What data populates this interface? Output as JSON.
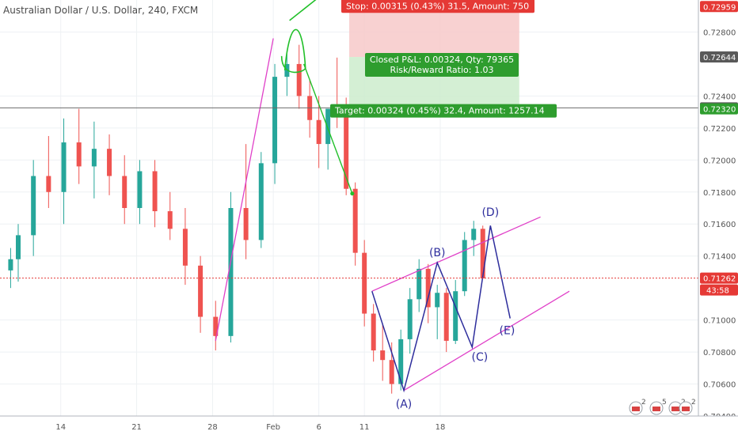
{
  "chart_data": {
    "type": "candlestick",
    "title": "Australian Dollar / U.S. Dollar, 240, FXCM",
    "ylim": [
      0.704,
      0.73
    ],
    "xlim": [
      0,
      46
    ],
    "x_ticks": [
      {
        "label": "14",
        "x": 4
      },
      {
        "label": "21",
        "x": 9
      },
      {
        "label": "28",
        "x": 14
      },
      {
        "label": "Feb",
        "x": 18
      },
      {
        "label": "6",
        "x": 21
      },
      {
        "label": "11",
        "x": 24
      },
      {
        "label": "18",
        "x": 29
      }
    ],
    "y_ticks": [
      "0.72800",
      "0.72400",
      "0.72200",
      "0.72000",
      "0.71800",
      "0.71600",
      "0.71400",
      "0.71000",
      "0.70800",
      "0.70600",
      "0.70400"
    ],
    "y_tick_values": [
      0.728,
      0.724,
      0.722,
      0.72,
      0.718,
      0.716,
      0.714,
      0.71,
      0.708,
      0.706,
      0.704
    ],
    "price_tags": [
      {
        "label": "0.72959",
        "value": 0.72959,
        "color": "#e53935"
      },
      {
        "label": "0.72644",
        "value": 0.72644,
        "color": "#595959"
      },
      {
        "label": "0.72326",
        "value": 0.72326,
        "color": "#595959"
      },
      {
        "label": "0.72320",
        "value": 0.7232,
        "color": "#2e9d2e"
      },
      {
        "label": "0.71262",
        "value": 0.71262,
        "color": "#e53935"
      }
    ],
    "countdown": "43:58",
    "horizontal_lines": [
      {
        "value": 0.72326,
        "style": "solid",
        "color": "#6b6b6b"
      },
      {
        "value": 0.71262,
        "style": "dotted",
        "color": "#e53935"
      }
    ],
    "candles": [
      [
        0.7,
        0.7131,
        0.7145,
        0.712,
        0.7138
      ],
      [
        1.2,
        0.7138,
        0.716,
        0.7124,
        0.7153
      ],
      [
        2.2,
        0.7153,
        0.72,
        0.714,
        0.719
      ],
      [
        3.2,
        0.719,
        0.7215,
        0.717,
        0.718
      ],
      [
        4.2,
        0.718,
        0.7226,
        0.716,
        0.7211
      ],
      [
        5.2,
        0.7211,
        0.7232,
        0.7185,
        0.7196
      ],
      [
        6.2,
        0.7196,
        0.7224,
        0.7176,
        0.7207
      ],
      [
        7.2,
        0.7207,
        0.7216,
        0.7178,
        0.719
      ],
      [
        8.2,
        0.719,
        0.7203,
        0.716,
        0.717
      ],
      [
        9.2,
        0.717,
        0.72,
        0.716,
        0.7193
      ],
      [
        10.2,
        0.7193,
        0.72,
        0.7158,
        0.7168
      ],
      [
        11.2,
        0.7168,
        0.718,
        0.715,
        0.7157
      ],
      [
        12.2,
        0.7157,
        0.717,
        0.7122,
        0.7134
      ],
      [
        13.2,
        0.7134,
        0.714,
        0.7092,
        0.7102
      ],
      [
        14.2,
        0.7102,
        0.7112,
        0.7081,
        0.709
      ],
      [
        15.2,
        0.709,
        0.718,
        0.7086,
        0.717
      ],
      [
        16.2,
        0.717,
        0.721,
        0.7138,
        0.715
      ],
      [
        17.2,
        0.715,
        0.7205,
        0.7145,
        0.7198
      ],
      [
        18.1,
        0.7198,
        0.726,
        0.7185,
        0.7252
      ],
      [
        18.9,
        0.7252,
        0.7268,
        0.724,
        0.726
      ],
      [
        19.7,
        0.726,
        0.7272,
        0.7232,
        0.724
      ],
      [
        20.4,
        0.724,
        0.725,
        0.7214,
        0.7225
      ],
      [
        21.0,
        0.7225,
        0.724,
        0.7195,
        0.721
      ],
      [
        21.6,
        0.721,
        0.7232,
        0.7194,
        0.7232
      ],
      [
        22.2,
        0.7232,
        0.7264,
        0.722,
        0.723
      ],
      [
        22.8,
        0.723,
        0.7239,
        0.7178,
        0.7182
      ],
      [
        23.4,
        0.7182,
        0.7186,
        0.7134,
        0.7142
      ],
      [
        24.0,
        0.7142,
        0.715,
        0.7096,
        0.7104
      ],
      [
        24.6,
        0.7104,
        0.711,
        0.7074,
        0.7081
      ],
      [
        25.2,
        0.7081,
        0.7097,
        0.7062,
        0.7075
      ],
      [
        25.8,
        0.7075,
        0.7086,
        0.7054,
        0.706
      ],
      [
        26.4,
        0.706,
        0.7094,
        0.7056,
        0.7088
      ],
      [
        27.0,
        0.7088,
        0.712,
        0.7079,
        0.7113
      ],
      [
        27.6,
        0.7113,
        0.7138,
        0.7105,
        0.7132
      ],
      [
        28.2,
        0.7132,
        0.7135,
        0.7098,
        0.7108
      ],
      [
        28.8,
        0.7108,
        0.7122,
        0.7088,
        0.7117
      ],
      [
        29.4,
        0.7117,
        0.712,
        0.708,
        0.7087
      ],
      [
        30.0,
        0.7087,
        0.7125,
        0.7085,
        0.7118
      ],
      [
        30.6,
        0.7118,
        0.7155,
        0.7115,
        0.715
      ],
      [
        31.2,
        0.715,
        0.7162,
        0.714,
        0.7157
      ],
      [
        31.8,
        0.7157,
        0.7159,
        0.7126,
        0.7126
      ]
    ]
  },
  "trade": {
    "stop_label": "Stop: 0.00315 (0.43%) 31.5, Amount: 750",
    "closed_label_line1": "Closed P&L: 0.00324, Qty: 79365",
    "closed_label_line2": "Risk/Reward Ratio: 1.03",
    "target_label": "Target: 0.00324 (0.45%) 32.4, Amount: 1257.14",
    "entry": 0.72644,
    "stop": 0.72959,
    "target": 0.7232,
    "x_start": 23.0,
    "x_end": 34.2
  },
  "wave_labels": [
    {
      "label": "(A)",
      "x": 26.6,
      "y": 0.7056
    },
    {
      "label": "(B)",
      "x": 28.8,
      "y": 0.71358
    },
    {
      "label": "(C)",
      "x": 31.6,
      "y": 0.70854
    },
    {
      "label": "(D)",
      "x": 32.3,
      "y": 0.7161
    },
    {
      "label": "(E)",
      "x": 33.4,
      "y": 0.7102
    }
  ],
  "wave_path": [
    [
      24.5,
      0.7118
    ],
    [
      26.6,
      0.7056
    ],
    [
      28.8,
      0.71358
    ],
    [
      31.1,
      0.7083
    ],
    [
      32.3,
      0.7159
    ],
    [
      33.6,
      0.7101
    ]
  ],
  "channel_upper": [
    [
      24.5,
      0.7118
    ],
    [
      35.6,
      0.71644
    ]
  ],
  "channel_lower": [
    [
      26.6,
      0.7056
    ],
    [
      37.5,
      0.7118
    ]
  ],
  "pink_rally_line": [
    [
      14.2,
      0.7087
    ],
    [
      18.0,
      0.7276
    ]
  ],
  "green_curve_anchor": [
    19.8,
    0.726
  ],
  "green_curve_end": [
    23.2,
    0.7179
  ],
  "flags": {
    "badge_1": "2",
    "badge_2": "5",
    "badge_3": "2",
    "badge_4": "2"
  }
}
